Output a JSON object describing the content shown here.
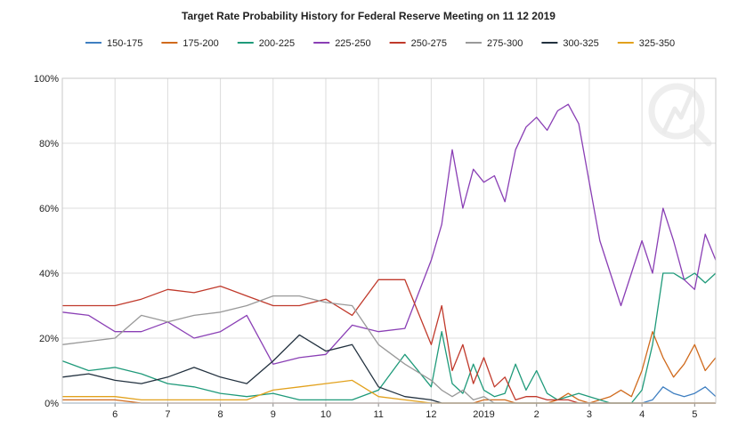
{
  "chart_data": {
    "type": "line",
    "title": "Target Rate Probability History for Federal Reserve Meeting on 11 12 2019",
    "xlabel": "",
    "ylabel": "",
    "x_tick_labels": [
      "6",
      "7",
      "8",
      "9",
      "10",
      "11",
      "12",
      "2019",
      "2",
      "3",
      "4",
      "5"
    ],
    "y_tick_labels": [
      "0%",
      "20%",
      "40%",
      "60%",
      "80%",
      "100%"
    ],
    "ylim": [
      0,
      100
    ],
    "grid": true,
    "legend_position": "top",
    "watermark": "logo",
    "x_domain": [
      0,
      12.4
    ],
    "x": [
      0,
      0.5,
      1,
      1.5,
      2,
      2.5,
      3,
      3.5,
      4,
      4.5,
      5,
      5.5,
      6,
      6.5,
      7,
      7.2,
      7.4,
      7.6,
      7.8,
      8,
      8.2,
      8.4,
      8.6,
      8.8,
      9,
      9.2,
      9.4,
      9.6,
      9.8,
      10,
      10.2,
      10.4,
      10.6,
      10.8,
      11,
      11.2,
      11.4,
      11.6,
      11.8,
      12,
      12.2,
      12.4
    ],
    "series": [
      {
        "name": "150-175",
        "color": "#3f7fc1",
        "values": [
          0,
          0,
          0,
          0,
          0,
          0,
          0,
          0,
          0,
          0,
          0,
          0,
          0,
          0,
          0,
          0,
          0,
          0,
          0,
          0,
          0,
          0,
          0,
          0,
          0,
          0,
          0,
          0,
          0,
          0,
          0,
          0,
          0,
          0,
          0,
          1,
          5,
          3,
          2,
          3,
          5,
          2
        ]
      },
      {
        "name": "175-200",
        "color": "#d06a1c",
        "values": [
          1,
          1,
          1,
          0,
          0,
          0,
          0,
          0,
          0,
          0,
          0,
          0,
          0,
          0,
          0,
          0,
          0,
          0,
          0,
          1,
          1,
          1,
          0,
          0,
          0,
          0,
          1,
          3,
          1,
          0,
          1,
          2,
          4,
          2,
          10,
          22,
          14,
          8,
          12,
          18,
          10,
          14
        ]
      },
      {
        "name": "200-225",
        "color": "#1f9a7a",
        "values": [
          13,
          10,
          11,
          9,
          6,
          5,
          3,
          2,
          3,
          1,
          1,
          1,
          4,
          15,
          5,
          22,
          6,
          3,
          12,
          4,
          2,
          3,
          12,
          4,
          10,
          3,
          1,
          2,
          3,
          2,
          1,
          0,
          0,
          0,
          4,
          18,
          40,
          40,
          38,
          40,
          37,
          40
        ]
      },
      {
        "name": "225-250",
        "color": "#8a3fb5",
        "values": [
          28,
          27,
          22,
          22,
          25,
          20,
          22,
          27,
          12,
          14,
          15,
          24,
          22,
          23,
          44,
          55,
          78,
          60,
          72,
          68,
          70,
          62,
          78,
          85,
          88,
          84,
          90,
          92,
          86,
          68,
          50,
          40,
          30,
          40,
          50,
          40,
          60,
          50,
          38,
          35,
          52,
          44
        ]
      },
      {
        "name": "250-275",
        "color": "#c0392b",
        "values": [
          30,
          30,
          30,
          32,
          35,
          34,
          36,
          33,
          30,
          30,
          32,
          27,
          38,
          38,
          18,
          30,
          10,
          18,
          6,
          14,
          5,
          8,
          1,
          2,
          2,
          1,
          1,
          1,
          0,
          0,
          0,
          0,
          0,
          0,
          0,
          0,
          0,
          0,
          0,
          0,
          0,
          0
        ]
      },
      {
        "name": "275-300",
        "color": "#999999",
        "values": [
          18,
          19,
          20,
          27,
          25,
          27,
          28,
          30,
          33,
          33,
          31,
          30,
          18,
          12,
          7,
          4,
          2,
          4,
          1,
          2,
          0,
          0,
          0,
          0,
          0,
          0,
          0,
          0,
          0,
          0,
          0,
          0,
          0,
          0,
          0,
          0,
          0,
          0,
          0,
          0,
          0,
          0
        ]
      },
      {
        "name": "300-325",
        "color": "#22313f",
        "values": [
          8,
          9,
          7,
          6,
          8,
          11,
          8,
          6,
          13,
          21,
          16,
          18,
          5,
          2,
          1,
          0,
          0,
          0,
          0,
          0,
          0,
          0,
          0,
          0,
          0,
          0,
          0,
          0,
          0,
          0,
          0,
          0,
          0,
          0,
          0,
          0,
          0,
          0,
          0,
          0,
          0,
          0
        ]
      },
      {
        "name": "325-350",
        "color": "#e2a11c",
        "values": [
          2,
          2,
          2,
          1,
          1,
          1,
          1,
          1,
          4,
          5,
          6,
          7,
          2,
          1,
          0,
          0,
          0,
          0,
          0,
          0,
          0,
          0,
          0,
          0,
          0,
          0,
          0,
          0,
          0,
          0,
          0,
          0,
          0,
          0,
          0,
          0,
          0,
          0,
          0,
          0,
          0,
          0
        ]
      }
    ]
  }
}
